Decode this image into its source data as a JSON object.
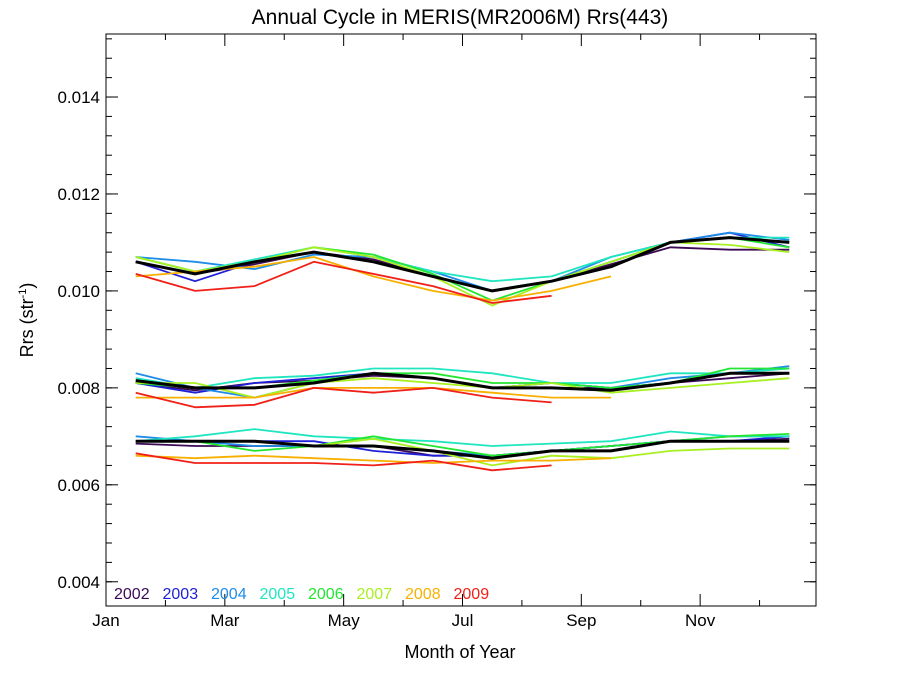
{
  "chart_data": {
    "type": "line",
    "title": "Annual Cycle in MERIS(MR2006M) Rrs(443)",
    "xlabel": "Month of Year",
    "ylabel": "Rrs (str",
    "ylabel_sup": "-1",
    "ylabel_end": ")",
    "xlim": [
      1,
      12.95
    ],
    "ylim": [
      0.0035,
      0.0153
    ],
    "x_ticks": [
      {
        "value": 1,
        "label": "Jan"
      },
      {
        "value": 3,
        "label": "Mar"
      },
      {
        "value": 5,
        "label": "May"
      },
      {
        "value": 7,
        "label": "Jul"
      },
      {
        "value": 9,
        "label": "Sep"
      },
      {
        "value": 11,
        "label": "Nov"
      }
    ],
    "y_ticks": [
      {
        "value": 0.004,
        "label": "0.004"
      },
      {
        "value": 0.006,
        "label": "0.006"
      },
      {
        "value": 0.008,
        "label": "0.008"
      },
      {
        "value": 0.01,
        "label": "0.010"
      },
      {
        "value": 0.012,
        "label": "0.012"
      },
      {
        "value": 0.014,
        "label": "0.014"
      }
    ],
    "grid": false,
    "legend_position": "bottom-left",
    "series": [
      {
        "name": "2002",
        "color": "#3a0a55",
        "groups": [
          {
            "x": [
              1.5,
              2.5,
              3.5,
              4.5,
              5.5,
              6.5,
              7.5,
              8.5,
              9.5,
              10.5,
              11.5,
              12.5
            ],
            "y": [
              0.0106,
              0.01035,
              0.01055,
              0.0108,
              0.01065,
              0.0103,
              0.01,
              0.0102,
              0.01055,
              0.0109,
              0.01085,
              0.01085
            ]
          },
          {
            "x": [
              1.5,
              2.5,
              3.5,
              4.5,
              5.5,
              6.5,
              7.5,
              8.5,
              9.5,
              10.5,
              11.5,
              12.5
            ],
            "y": [
              0.0081,
              0.00795,
              0.0081,
              0.00815,
              0.00825,
              0.0082,
              0.008,
              0.008,
              0.008,
              0.0081,
              0.0082,
              0.0083
            ]
          },
          {
            "x": [
              1.5,
              2.5,
              3.5,
              4.5,
              5.5,
              6.5,
              7.5,
              8.5,
              9.5,
              10.5,
              11.5,
              12.5
            ],
            "y": [
              0.00685,
              0.0068,
              0.0068,
              0.0068,
              0.0068,
              0.0066,
              0.0066,
              0.0067,
              0.0068,
              0.0069,
              0.0069,
              0.00695
            ]
          }
        ]
      },
      {
        "name": "2003",
        "color": "#2020d8",
        "groups": [
          {
            "x": [
              1.5,
              2.5,
              3.5,
              4.5,
              5.5,
              6.5,
              7.5,
              8.5,
              9.5,
              10.5,
              11.5,
              12.5
            ],
            "y": [
              0.0106,
              0.0102,
              0.0106,
              0.0108,
              0.0106,
              0.0103,
              0.01,
              0.0102,
              0.0106,
              0.011,
              0.0112,
              0.0109
            ]
          },
          {
            "x": [
              1.5,
              2.5,
              3.5,
              4.5,
              5.5,
              6.5,
              7.5,
              8.5,
              9.5,
              10.5,
              11.5,
              12.5
            ],
            "y": [
              0.0081,
              0.0079,
              0.0081,
              0.0082,
              0.0083,
              0.0082,
              0.008,
              0.0081,
              0.008,
              0.0081,
              0.0083,
              0.0083
            ]
          },
          {
            "x": [
              1.5,
              2.5,
              3.5,
              4.5,
              5.5,
              6.5,
              7.5,
              8.5,
              9.5,
              10.5,
              11.5,
              12.5
            ],
            "y": [
              0.0069,
              0.0069,
              0.0069,
              0.0069,
              0.0067,
              0.0066,
              0.0066,
              0.0067,
              0.0068,
              0.0069,
              0.0069,
              0.007
            ]
          }
        ]
      },
      {
        "name": "2004",
        "color": "#1e8ce8",
        "groups": [
          {
            "x": [
              1.5,
              2.5,
              3.5,
              4.5,
              5.5,
              6.5,
              7.5,
              8.5,
              9.5,
              10.5,
              11.5,
              12.5
            ],
            "y": [
              0.0107,
              0.0106,
              0.01045,
              0.01075,
              0.0107,
              0.0104,
              0.01,
              0.0102,
              0.0107,
              0.011,
              0.0112,
              0.01105
            ]
          },
          {
            "x": [
              1.5,
              2.5,
              3.5,
              4.5,
              5.5,
              6.5,
              7.5,
              8.5,
              9.5,
              10.5,
              11.5,
              12.5
            ],
            "y": [
              0.0083,
              0.008,
              0.0078,
              0.0081,
              0.0083,
              0.0082,
              0.008,
              0.0081,
              0.008,
              0.0082,
              0.0083,
              0.00845
            ]
          },
          {
            "x": [
              1.5,
              2.5,
              3.5,
              4.5,
              5.5,
              6.5,
              7.5,
              8.5,
              9.5,
              10.5,
              11.5,
              12.5
            ],
            "y": [
              0.007,
              0.0069,
              0.0068,
              0.0068,
              0.0068,
              0.0067,
              0.0066,
              0.0067,
              0.0068,
              0.0069,
              0.007,
              0.007
            ]
          }
        ]
      },
      {
        "name": "2005",
        "color": "#20e6c0",
        "groups": [
          {
            "x": [
              1.5,
              2.5,
              3.5,
              4.5,
              5.5,
              6.5,
              7.5,
              8.5,
              9.5,
              10.5,
              11.5,
              12.5
            ],
            "y": [
              0.0107,
              0.0104,
              0.01065,
              0.0109,
              0.0107,
              0.0104,
              0.0102,
              0.0103,
              0.0107,
              0.011,
              0.0111,
              0.0111
            ]
          },
          {
            "x": [
              1.5,
              2.5,
              3.5,
              4.5,
              5.5,
              6.5,
              7.5,
              8.5,
              9.5,
              10.5,
              11.5,
              12.5
            ],
            "y": [
              0.0082,
              0.008,
              0.0082,
              0.00825,
              0.0084,
              0.0084,
              0.0083,
              0.0081,
              0.0081,
              0.0083,
              0.0083,
              0.0084
            ]
          },
          {
            "x": [
              1.5,
              2.5,
              3.5,
              4.5,
              5.5,
              6.5,
              7.5,
              8.5,
              9.5,
              10.5,
              11.5,
              12.5
            ],
            "y": [
              0.0069,
              0.007,
              0.00715,
              0.007,
              0.00695,
              0.0069,
              0.0068,
              0.00685,
              0.0069,
              0.0071,
              0.007,
              0.007
            ]
          }
        ]
      },
      {
        "name": "2006",
        "color": "#22e632",
        "groups": [
          {
            "x": [
              1.5,
              2.5,
              3.5,
              4.5,
              5.5,
              6.5,
              7.5,
              8.5,
              9.5,
              10.5,
              11.5,
              12.5
            ],
            "y": [
              0.0107,
              0.0104,
              0.0106,
              0.0109,
              0.01075,
              0.01035,
              0.0098,
              0.0102,
              0.0106,
              0.011,
              0.0111,
              0.0109
            ]
          },
          {
            "x": [
              1.5,
              2.5,
              3.5,
              4.5,
              5.5,
              6.5,
              7.5,
              8.5,
              9.5,
              10.5,
              11.5,
              12.5
            ],
            "y": [
              0.0081,
              0.008,
              0.008,
              0.00815,
              0.0083,
              0.0083,
              0.0081,
              0.0081,
              0.008,
              0.0081,
              0.0084,
              0.0084
            ]
          },
          {
            "x": [
              1.5,
              2.5,
              3.5,
              4.5,
              5.5,
              6.5,
              7.5,
              8.5,
              9.5,
              10.5,
              11.5,
              12.5
            ],
            "y": [
              0.0069,
              0.0069,
              0.0067,
              0.0068,
              0.007,
              0.0068,
              0.0066,
              0.0067,
              0.0068,
              0.0069,
              0.007,
              0.00705
            ]
          }
        ]
      },
      {
        "name": "2007",
        "color": "#a8f020",
        "groups": [
          {
            "x": [
              1.5,
              2.5,
              3.5,
              4.5,
              5.5,
              6.5,
              7.5,
              8.5,
              9.5,
              10.5,
              11.5,
              12.5
            ],
            "y": [
              0.0107,
              0.0104,
              0.0106,
              0.0109,
              0.0107,
              0.0103,
              0.0097,
              0.0102,
              0.0106,
              0.011,
              0.01095,
              0.0108
            ]
          },
          {
            "x": [
              1.5,
              2.5,
              3.5,
              4.5,
              5.5,
              6.5,
              7.5,
              8.5,
              9.5,
              10.5,
              11.5,
              12.5
            ],
            "y": [
              0.0081,
              0.0081,
              0.0078,
              0.0081,
              0.0082,
              0.0081,
              0.008,
              0.0081,
              0.0079,
              0.008,
              0.0081,
              0.0082
            ]
          },
          {
            "x": [
              1.5,
              2.5,
              3.5,
              4.5,
              5.5,
              6.5,
              7.5,
              8.5,
              9.5,
              10.5,
              11.5,
              12.5
            ],
            "y": [
              0.0069,
              0.0069,
              0.0069,
              0.0068,
              0.00695,
              0.0067,
              0.0064,
              0.0066,
              0.00655,
              0.0067,
              0.00675,
              0.00675
            ]
          }
        ]
      },
      {
        "name": "2008",
        "color": "#f8b000",
        "groups": [
          {
            "x": [
              1.5,
              2.5,
              3.5,
              4.5,
              5.5,
              6.5,
              7.5,
              8.5,
              9.5
            ],
            "y": [
              0.0103,
              0.0104,
              0.0105,
              0.0107,
              0.0103,
              0.01,
              0.0098,
              0.01,
              0.0103
            ]
          },
          {
            "x": [
              1.5,
              2.5,
              3.5,
              4.5,
              5.5,
              6.5,
              7.5,
              8.5,
              9.5
            ],
            "y": [
              0.0078,
              0.0078,
              0.0078,
              0.008,
              0.008,
              0.008,
              0.0079,
              0.0078,
              0.0078
            ]
          },
          {
            "x": [
              1.5,
              2.5,
              3.5,
              4.5,
              5.5,
              6.5,
              7.5,
              8.5,
              9.5
            ],
            "y": [
              0.0066,
              0.00655,
              0.0066,
              0.00655,
              0.0065,
              0.00645,
              0.0065,
              0.0065,
              0.00655
            ]
          }
        ]
      },
      {
        "name": "2009",
        "color": "#f02018",
        "groups": [
          {
            "x": [
              1.5,
              2.5,
              3.5,
              4.5,
              5.5,
              6.5,
              7.5,
              8.5
            ],
            "y": [
              0.01035,
              0.01,
              0.0101,
              0.0106,
              0.01035,
              0.0101,
              0.00975,
              0.0099
            ]
          },
          {
            "x": [
              1.5,
              2.5,
              3.5,
              4.5,
              5.5,
              6.5,
              7.5,
              8.5
            ],
            "y": [
              0.0079,
              0.0076,
              0.00765,
              0.008,
              0.0079,
              0.008,
              0.0078,
              0.0077
            ]
          },
          {
            "x": [
              1.5,
              2.5,
              3.5,
              4.5,
              5.5,
              6.5,
              7.5,
              8.5
            ],
            "y": [
              0.00665,
              0.00645,
              0.00645,
              0.00645,
              0.0064,
              0.0065,
              0.0063,
              0.0064
            ]
          }
        ]
      },
      {
        "color": "#000000",
        "bold": true,
        "groups": [
          {
            "x": [
              1.5,
              2.5,
              3.5,
              4.5,
              5.5,
              6.5,
              7.5,
              8.5,
              9.5,
              10.5,
              11.5,
              12.5
            ],
            "y": [
              0.0106,
              0.01035,
              0.0106,
              0.0108,
              0.0106,
              0.0103,
              0.01,
              0.0102,
              0.0105,
              0.011,
              0.0111,
              0.011
            ]
          },
          {
            "x": [
              1.5,
              2.5,
              3.5,
              4.5,
              5.5,
              6.5,
              7.5,
              8.5,
              9.5,
              10.5,
              11.5,
              12.5
            ],
            "y": [
              0.00815,
              0.008,
              0.008,
              0.0081,
              0.0083,
              0.0082,
              0.008,
              0.008,
              0.00795,
              0.0081,
              0.0083,
              0.0083
            ]
          },
          {
            "x": [
              1.5,
              2.5,
              3.5,
              4.5,
              5.5,
              6.5,
              7.5,
              8.5,
              9.5,
              10.5,
              11.5,
              12.5
            ],
            "y": [
              0.0069,
              0.0069,
              0.0069,
              0.0068,
              0.0068,
              0.0067,
              0.00655,
              0.0067,
              0.0067,
              0.0069,
              0.0069,
              0.0069
            ]
          }
        ]
      }
    ]
  }
}
